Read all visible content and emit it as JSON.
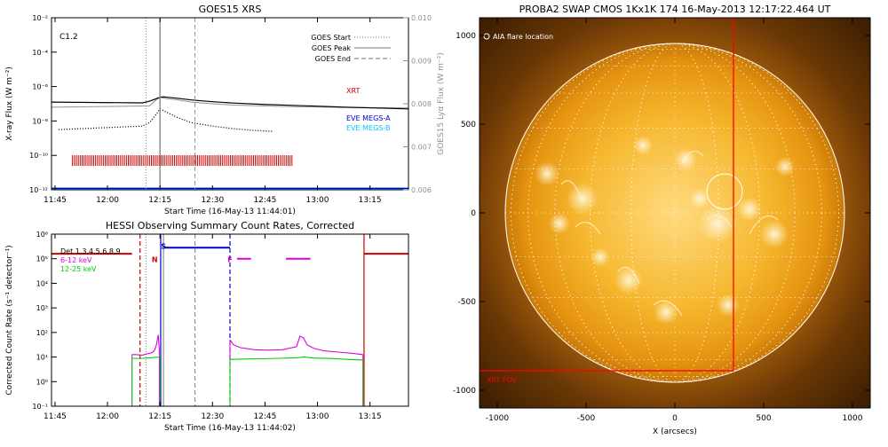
{
  "chart_data": [
    {
      "type": "line",
      "title": "GOES15 XRS",
      "xlabel": "Start Time (16-May-13 11:44:01)",
      "ylabel": "X-ray Flux (W m⁻²)",
      "y2label": "GOES15 Lyα Flux (W m⁻²)",
      "class_label": "C1.2",
      "x_ticks": [
        "11:45",
        "12:00",
        "12:15",
        "12:30",
        "12:45",
        "13:00",
        "13:15"
      ],
      "y_ticks": [
        "10⁻¹²",
        "10⁻¹⁰",
        "10⁻⁸",
        "10⁻⁶",
        "10⁻⁴",
        "10⁻²"
      ],
      "y2_ticks": [
        "0.006",
        "0.007",
        "0.008",
        "0.009",
        "0.010"
      ],
      "xlim_minutes": [
        0,
        102
      ],
      "ylim_log10": [
        -12,
        -2
      ],
      "y2lim": [
        0.006,
        0.01
      ],
      "legend": [
        {
          "label": "GOES Start",
          "style": "dotted",
          "color": "#909090"
        },
        {
          "label": "GOES Peak",
          "style": "solid",
          "color": "#909090"
        },
        {
          "label": "GOES End",
          "style": "dashed",
          "color": "#909090"
        }
      ],
      "markers_minutes": {
        "start": 27,
        "peak": 31,
        "end": 41
      },
      "series": [
        {
          "name": "XRT",
          "color": "#cc0000",
          "style": "bars",
          "y_log10": -10.3,
          "x_range": [
            6,
            69
          ]
        },
        {
          "name": "EVE MEGS-A",
          "color": "#0000cc",
          "y_log10": -11.93
        },
        {
          "name": "EVE MEGS-B",
          "color": "#00c8ff",
          "y_log10": -12.0
        }
      ],
      "curves": {
        "xray_long": {
          "color": "#000000",
          "x": [
            0,
            26,
            28,
            30,
            31,
            32,
            36,
            40,
            46,
            52,
            60,
            68,
            76,
            84,
            92,
            102
          ],
          "y": [
            -6.9,
            -6.95,
            -6.85,
            -6.7,
            -6.62,
            -6.6,
            -6.68,
            -6.78,
            -6.88,
            -6.96,
            -7.03,
            -7.09,
            -7.14,
            -7.2,
            -7.24,
            -7.3
          ]
        },
        "lyman_alpha": {
          "color": "#909090",
          "x": [
            0,
            28,
            30,
            31,
            33,
            36,
            40,
            46,
            52,
            60,
            70,
            80,
            92,
            102
          ],
          "y": [
            0.00792,
            0.00795,
            0.0081,
            0.00815,
            0.00812,
            0.00809,
            0.00804,
            0.008,
            0.00797,
            0.00795,
            0.00793,
            0.00792,
            0.00791,
            0.0079
          ]
        },
        "xray_short": {
          "color": "#000000",
          "style": "dotted",
          "x": [
            2,
            26,
            28,
            30,
            31,
            33,
            36,
            40,
            46,
            52,
            58,
            63
          ],
          "y": [
            -8.5,
            -8.3,
            -8.1,
            -7.6,
            -7.3,
            -7.5,
            -7.8,
            -8.1,
            -8.3,
            -8.45,
            -8.55,
            -8.6
          ]
        }
      }
    },
    {
      "type": "line",
      "title": "HESSI Observing Summary Count Rates, Corrected",
      "xlabel": "Start Time (16-May-13 11:44:02)",
      "ylabel": "Corrected Count Rate (s⁻¹ detector⁻¹)",
      "x_ticks": [
        "11:45",
        "12:00",
        "12:15",
        "12:30",
        "12:45",
        "13:00",
        "13:15"
      ],
      "y_ticks": [
        "10⁻¹",
        "10⁰",
        "10¹",
        "10²",
        "10³",
        "10⁴",
        "10⁵",
        "10⁶"
      ],
      "xlim_minutes": [
        0,
        102
      ],
      "ylim_log10": [
        -1,
        6
      ],
      "legend": [
        {
          "label": "Det 1,3,4,5,6,8,9",
          "color": "#000000"
        },
        {
          "label": "6-12 keV",
          "color": "#dd00dd"
        },
        {
          "label": "12-25 keV",
          "color": "#00cc00"
        }
      ],
      "flags": [
        {
          "label": "N",
          "color": "#cc0000",
          "x": 29.5
        },
        {
          "label": "S",
          "color": "#0000cc",
          "x": 32
        },
        {
          "label": "F",
          "color": "#dd00dd",
          "x": 51
        }
      ],
      "vlines": [
        {
          "x": 25.3,
          "color": "#cc0000",
          "style": "dashed"
        },
        {
          "x": 27,
          "color": "#909090",
          "style": "dotted"
        },
        {
          "x": 31.2,
          "color": "#0000cc",
          "style": "solid"
        },
        {
          "x": 32,
          "color": "#909090",
          "style": "solid"
        },
        {
          "x": 41,
          "color": "#909090",
          "style": "dashed"
        },
        {
          "x": 51,
          "color": "#0000cc",
          "style": "dashed"
        },
        {
          "x": 89.3,
          "color": "#cc0000",
          "style": "solid"
        }
      ],
      "series": [
        {
          "name": "6-12 keV",
          "color": "#dd00dd",
          "segments": [
            {
              "x": [
                23,
                24,
                26,
                27,
                28,
                29,
                29.5,
                30,
                30.5,
                30.8
              ],
              "y": [
                1.1,
                1.1,
                1.08,
                1.12,
                1.15,
                1.2,
                1.3,
                1.5,
                1.9,
                1.3
              ]
            },
            {
              "x": [
                51,
                52,
                54,
                58,
                62,
                66,
                70,
                71,
                72,
                73,
                75,
                78,
                82,
                86,
                89
              ],
              "y": [
                1.7,
                1.5,
                1.38,
                1.3,
                1.28,
                1.3,
                1.42,
                1.85,
                1.78,
                1.5,
                1.35,
                1.25,
                1.2,
                1.15,
                1.1
              ]
            }
          ]
        },
        {
          "name": "12-25 keV",
          "color": "#00cc00",
          "segments": [
            {
              "x": [
                23,
                26,
                28,
                30,
                31
              ],
              "y": [
                0.95,
                0.95,
                0.97,
                0.99,
                1.0
              ]
            },
            {
              "x": [
                51,
                55,
                60,
                65,
                70,
                72,
                75,
                80,
                85,
                89
              ],
              "y": [
                0.9,
                0.92,
                0.93,
                0.95,
                0.97,
                1.0,
                0.96,
                0.94,
                0.9,
                0.88
              ]
            }
          ]
        },
        {
          "name": "Det 1,3,4,5,6,8,9",
          "color": "#000000"
        }
      ]
    },
    {
      "type": "scatter",
      "title": "PROBA2 SWAP CMOS 1Kx1K 174 16-May-2013 12:17:22.464 UT",
      "xlabel": "X (arcsecs)",
      "ylabel": "",
      "x_ticks": [
        "-1000",
        "-500",
        "0",
        "500",
        "1000"
      ],
      "y_ticks": [
        "-1000",
        "-500",
        "0",
        "500",
        "1000"
      ],
      "xlim": [
        -1100,
        1100
      ],
      "ylim": [
        -1100,
        1100
      ],
      "legend_text": "AIA flare location",
      "fov_label": "XRT FOV",
      "solar_radius_arcsec": 955,
      "flare_location": {
        "x": 280,
        "y": 120,
        "r": 100
      },
      "xrt_fov": {
        "x0": -1100,
        "x1": 330,
        "y0": -890,
        "y1": 1100
      }
    }
  ]
}
